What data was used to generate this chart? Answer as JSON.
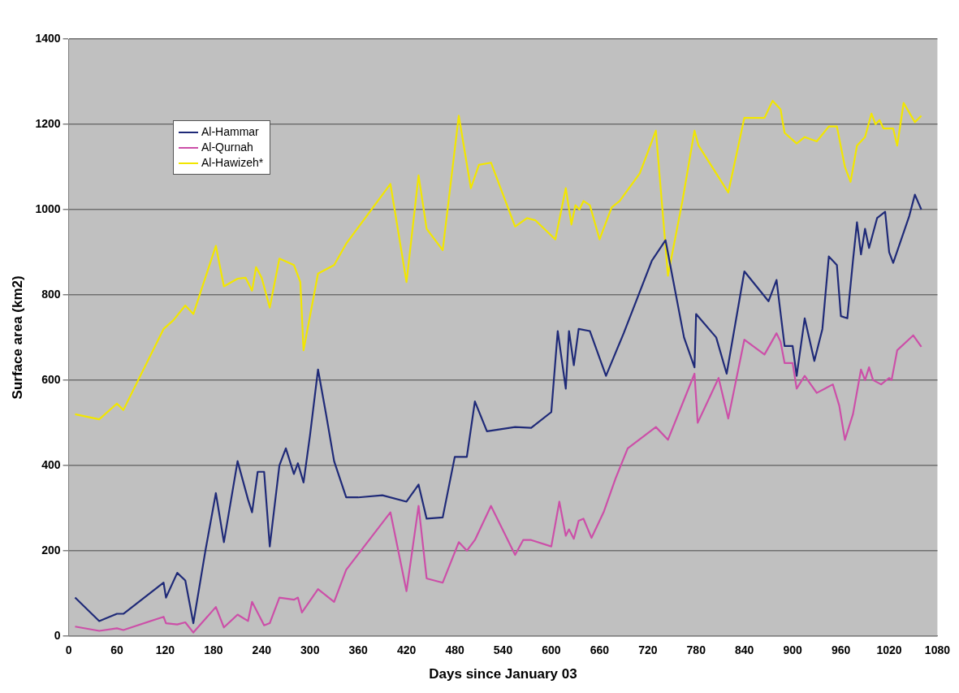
{
  "chart_data": {
    "type": "line",
    "xlabel": "Days since January 03",
    "ylabel": "Surface area (km2)",
    "xlim": [
      0,
      1080
    ],
    "xticks": [
      0,
      60,
      120,
      180,
      240,
      300,
      360,
      420,
      480,
      540,
      600,
      660,
      720,
      780,
      840,
      900,
      960,
      1020,
      1080
    ],
    "ylim": [
      0,
      1400
    ],
    "yticks": [
      0,
      200,
      400,
      600,
      800,
      1000,
      1200,
      1400
    ],
    "grid": "y",
    "legend": "top left",
    "marker": "none",
    "line_style": "solid",
    "series": [
      {
        "name": "Al-Hammar",
        "color": "#1f2a78",
        "x": [
          8,
          38,
          60,
          68,
          118,
          121,
          135,
          145,
          155,
          170,
          183,
          193,
          210,
          223,
          228,
          235,
          243,
          250,
          262,
          270,
          280,
          285,
          292,
          300,
          310,
          320,
          330,
          345,
          360,
          390,
          420,
          435,
          445,
          465,
          480,
          495,
          505,
          520,
          555,
          575,
          600,
          608,
          618,
          622,
          628,
          634,
          648,
          668,
          690,
          725,
          742,
          765,
          778,
          780,
          805,
          818,
          840,
          870,
          880,
          890,
          900,
          905,
          915,
          927,
          937,
          945,
          955,
          960,
          968,
          975,
          980,
          985,
          990,
          995,
          1005,
          1015,
          1020,
          1025,
          1045,
          1052,
          1060
        ],
        "values": [
          90,
          35,
          52,
          52,
          125,
          90,
          148,
          130,
          30,
          200,
          335,
          220,
          410,
          320,
          290,
          385,
          385,
          210,
          400,
          440,
          380,
          405,
          360,
          470,
          625,
          520,
          410,
          325,
          325,
          330,
          315,
          355,
          275,
          278,
          420,
          420,
          550,
          480,
          490,
          488,
          525,
          715,
          580,
          715,
          635,
          720,
          715,
          610,
          710,
          880,
          928,
          700,
          630,
          755,
          700,
          615,
          855,
          785,
          835,
          680,
          680,
          610,
          745,
          645,
          720,
          890,
          870,
          750,
          745,
          880,
          970,
          895,
          955,
          910,
          980,
          995,
          900,
          875,
          985,
          1035,
          1000
        ]
      },
      {
        "name": "Al-Qurnah",
        "color": "#cc4fa8",
        "x": [
          8,
          38,
          60,
          68,
          118,
          121,
          135,
          145,
          155,
          183,
          193,
          210,
          223,
          228,
          243,
          250,
          262,
          280,
          285,
          290,
          310,
          330,
          345,
          400,
          420,
          435,
          445,
          465,
          485,
          495,
          505,
          525,
          555,
          565,
          575,
          600,
          610,
          618,
          622,
          628,
          634,
          640,
          650,
          665,
          680,
          695,
          730,
          745,
          778,
          782,
          808,
          820,
          840,
          865,
          880,
          885,
          890,
          900,
          905,
          915,
          930,
          950,
          958,
          965,
          975,
          985,
          990,
          995,
          1000,
          1010,
          1020,
          1023,
          1030,
          1050,
          1060
        ],
        "values": [
          22,
          12,
          18,
          14,
          45,
          30,
          27,
          32,
          8,
          68,
          20,
          50,
          35,
          80,
          25,
          30,
          90,
          85,
          90,
          55,
          110,
          80,
          155,
          290,
          105,
          305,
          135,
          125,
          220,
          200,
          225,
          305,
          190,
          225,
          225,
          210,
          315,
          235,
          250,
          228,
          270,
          275,
          230,
          290,
          370,
          440,
          490,
          460,
          615,
          500,
          605,
          510,
          695,
          660,
          710,
          690,
          640,
          640,
          580,
          610,
          570,
          590,
          540,
          460,
          520,
          625,
          600,
          630,
          600,
          590,
          605,
          600,
          670,
          705,
          678
        ]
      },
      {
        "name": "Al-Hawizeh*",
        "color": "#f2e600",
        "x": [
          8,
          38,
          60,
          68,
          118,
          130,
          145,
          155,
          183,
          193,
          210,
          220,
          228,
          233,
          240,
          250,
          262,
          280,
          288,
          292,
          310,
          330,
          345,
          400,
          420,
          435,
          445,
          465,
          485,
          500,
          510,
          525,
          555,
          570,
          580,
          605,
          618,
          625,
          630,
          635,
          640,
          648,
          660,
          675,
          685,
          710,
          730,
          745,
          763,
          778,
          783,
          805,
          820,
          840,
          865,
          875,
          885,
          890,
          905,
          915,
          930,
          945,
          955,
          965,
          972,
          980,
          990,
          998,
          1003,
          1008,
          1013,
          1025,
          1030,
          1038,
          1052,
          1060
        ],
        "values": [
          520,
          508,
          545,
          530,
          720,
          740,
          775,
          755,
          915,
          820,
          838,
          840,
          810,
          865,
          840,
          770,
          885,
          870,
          830,
          670,
          850,
          870,
          920,
          1060,
          830,
          1080,
          955,
          905,
          1220,
          1050,
          1105,
          1110,
          960,
          980,
          975,
          930,
          1050,
          965,
          1010,
          1000,
          1020,
          1010,
          930,
          1005,
          1020,
          1085,
          1185,
          845,
          1020,
          1185,
          1150,
          1085,
          1040,
          1215,
          1215,
          1255,
          1235,
          1180,
          1155,
          1170,
          1160,
          1195,
          1195,
          1100,
          1065,
          1150,
          1170,
          1225,
          1200,
          1210,
          1190,
          1190,
          1150,
          1250,
          1205,
          1220
        ]
      }
    ]
  }
}
